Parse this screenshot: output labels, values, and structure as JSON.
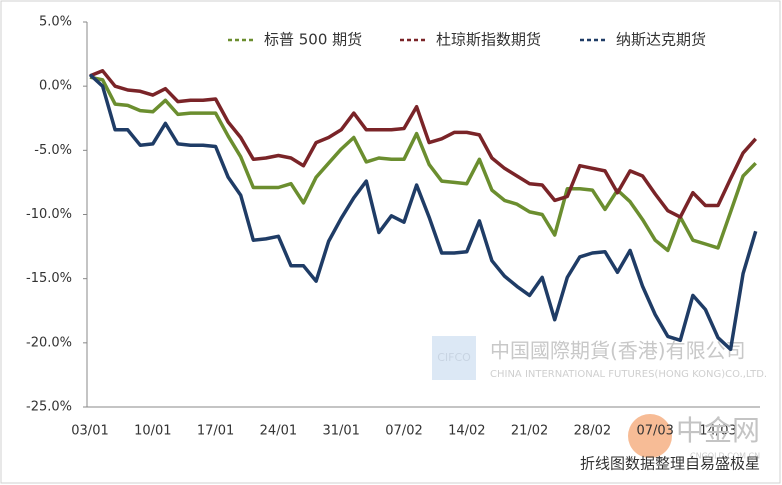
{
  "chart_data": {
    "type": "line",
    "categories": [
      "03/01",
      null,
      null,
      null,
      null,
      "10/01",
      null,
      null,
      null,
      null,
      "17/01",
      null,
      null,
      null,
      null,
      "24/01",
      null,
      null,
      null,
      null,
      "31/01",
      null,
      null,
      null,
      null,
      "07/02",
      null,
      null,
      null,
      null,
      "14/02",
      null,
      null,
      null,
      null,
      "21/02",
      null,
      null,
      null,
      null,
      "28/02",
      null,
      null,
      null,
      null,
      "07/03",
      null,
      null,
      null,
      null,
      "14/03",
      null,
      null,
      null
    ],
    "series": [
      {
        "name": "标普 500 期货",
        "color": "#6b8e2f",
        "values": [
          0.7,
          0.5,
          -1.4,
          -1.5,
          -1.9,
          -2.0,
          -1.1,
          -2.2,
          -2.1,
          -2.1,
          -2.1,
          -3.9,
          -5.5,
          -7.9,
          -7.9,
          -7.9,
          -7.6,
          -9.1,
          -7.1,
          -6.0,
          -4.9,
          -4.0,
          -5.9,
          -5.6,
          -5.7,
          -5.7,
          -3.7,
          -6.1,
          -7.4,
          -7.5,
          -7.6,
          -5.7,
          -8.1,
          -8.9,
          -9.2,
          -9.8,
          -10.0,
          -11.6,
          -8.0,
          -8.0,
          -8.1,
          -9.6,
          -8.1,
          -9.0,
          -10.4,
          -12.0,
          -12.8,
          -10.2,
          -12.0,
          -12.3,
          -12.6,
          -9.8,
          -7.0,
          -6.0
        ]
      },
      {
        "name": "杜琼斯指数期货",
        "color": "#7a2428",
        "values": [
          0.8,
          1.2,
          0.0,
          -0.3,
          -0.4,
          -0.7,
          -0.2,
          -1.2,
          -1.1,
          -1.1,
          -1.0,
          -2.8,
          -4.0,
          -5.7,
          -5.6,
          -5.4,
          -5.6,
          -6.2,
          -4.4,
          -4.0,
          -3.4,
          -2.1,
          -3.4,
          -3.4,
          -3.4,
          -3.3,
          -1.6,
          -4.4,
          -4.1,
          -3.6,
          -3.6,
          -3.8,
          -5.6,
          -6.4,
          -7.0,
          -7.6,
          -7.7,
          -8.9,
          -8.6,
          -6.2,
          -6.4,
          -6.6,
          -8.3,
          -6.6,
          -7.0,
          -8.4,
          -9.7,
          -10.2,
          -8.3,
          -9.3,
          -9.3,
          -7.2,
          -5.2,
          -4.1
        ]
      },
      {
        "name": "纳斯达克期货",
        "color": "#1f3c66",
        "values": [
          0.9,
          0.0,
          -3.4,
          -3.4,
          -4.6,
          -4.5,
          -2.9,
          -4.5,
          -4.6,
          -4.6,
          -4.7,
          -7.1,
          -8.5,
          -12.0,
          -11.9,
          -11.7,
          -14.0,
          -14.0,
          -15.2,
          -12.1,
          -10.3,
          -8.7,
          -7.4,
          -11.4,
          -10.1,
          -10.6,
          -7.7,
          -10.2,
          -13.0,
          -13.0,
          -12.9,
          -10.5,
          -13.6,
          -14.8,
          -15.6,
          -16.3,
          -14.9,
          -18.2,
          -14.9,
          -13.3,
          -13.0,
          -12.9,
          -14.5,
          -12.8,
          -15.6,
          -17.8,
          -19.5,
          -19.8,
          -16.3,
          -17.4,
          -19.6,
          -20.5,
          -14.6,
          -11.3
        ]
      }
    ],
    "ylim": [
      -25,
      5
    ],
    "yticks": [
      {
        "value": 5,
        "label": "5.0%"
      },
      {
        "value": 0,
        "label": "0.0%"
      },
      {
        "value": -5,
        "label": "-5.0%"
      },
      {
        "value": -10,
        "label": "-10.0%"
      },
      {
        "value": -15,
        "label": "-15.0%"
      },
      {
        "value": -20,
        "label": "-20.0%"
      },
      {
        "value": -25,
        "label": "-25.0%"
      }
    ],
    "legend": "upper right",
    "annotations": [
      "CIFCO",
      "中国國際期貨(香港)有限公司",
      "CHINA INTERNATIONAL FUTURES(HONG KONG)CO.,LTD.",
      "中金网",
      "CNGOLD.COM.CN",
      "折线图数据整理自易盛极星"
    ]
  }
}
